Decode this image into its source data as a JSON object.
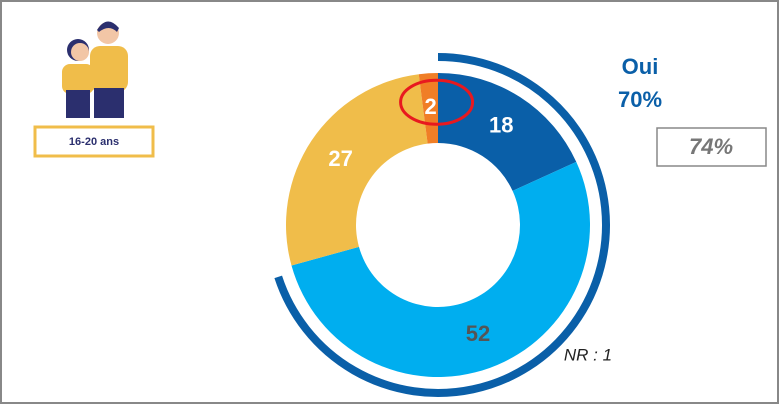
{
  "chart_data": {
    "type": "donut",
    "values": [
      18,
      52,
      27,
      2
    ],
    "colors": [
      "#0a5fa8",
      "#00aeef",
      "#f0bd4a",
      "#f07e26"
    ],
    "outer_arc": {
      "name": "Oui",
      "value": 70,
      "label": "70%",
      "color": "#0a5fa8"
    },
    "comparison": "74%",
    "note": "NR : 1",
    "group": "16-20 ans"
  }
}
